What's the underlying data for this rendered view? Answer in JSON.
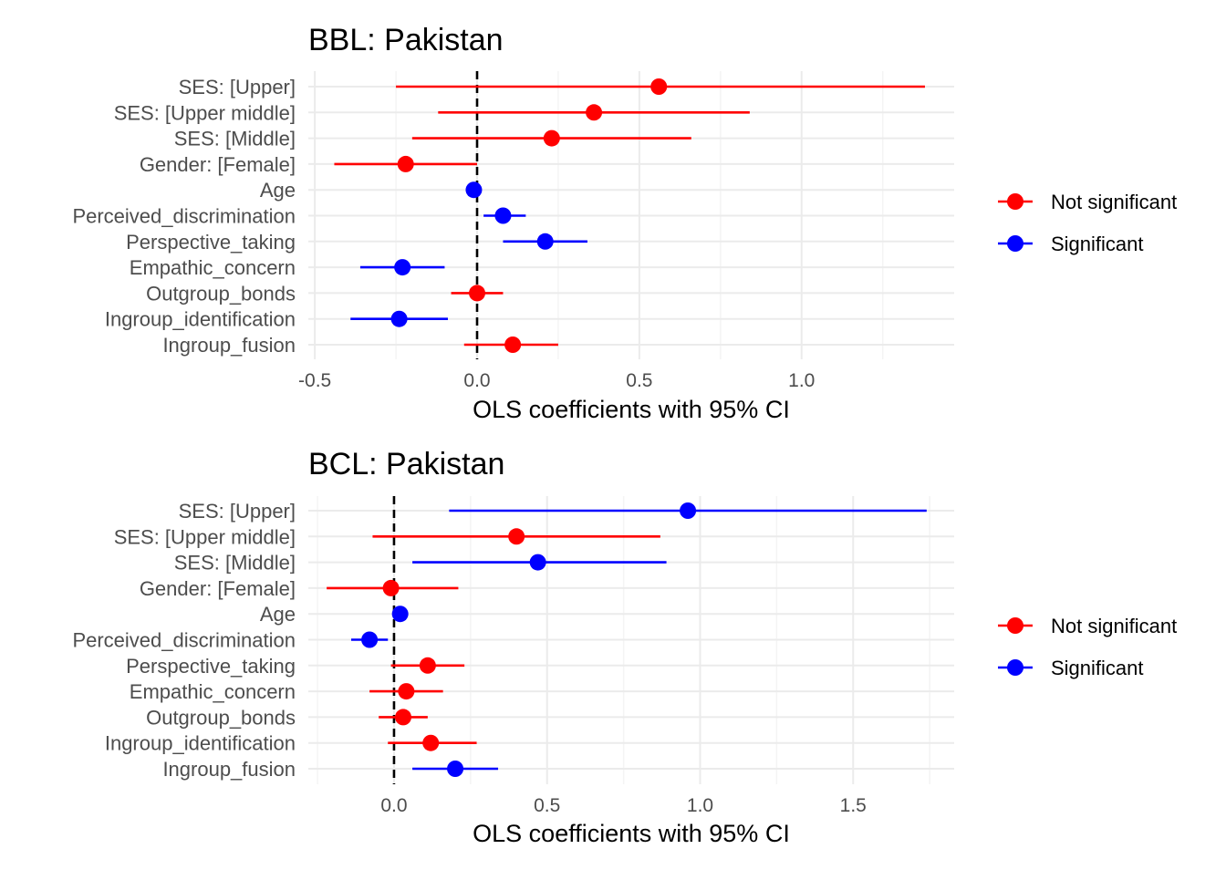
{
  "colors": {
    "not_significant": "#ff0000",
    "significant": "#0000ff"
  },
  "chart_data": [
    {
      "type": "scatter",
      "title": "BBL: Pakistan",
      "xlabel": "OLS coefficients with 95% CI",
      "ylabel": "",
      "xlim": [
        -0.52,
        1.47
      ],
      "xticks": [
        -0.5,
        0.0,
        0.5,
        1.0
      ],
      "xtick_labels": [
        "-0.5",
        "0.0",
        "0.5",
        "1.0"
      ],
      "categories": [
        "SES:  [Upper]",
        "SES:  [Upper middle]",
        "SES:  [Middle]",
        "Gender:  [Female]",
        "Age",
        "Perceived_discrimination",
        "Perspective_taking",
        "Empathic_concern",
        "Outgroup_bonds",
        "Ingroup_identification",
        "Ingroup_fusion"
      ],
      "estimates": [
        0.56,
        0.36,
        0.23,
        -0.22,
        -0.01,
        0.08,
        0.21,
        -0.23,
        0.0,
        -0.24,
        0.11
      ],
      "ci_low": [
        -0.25,
        -0.12,
        -0.2,
        -0.44,
        -0.01,
        0.02,
        0.08,
        -0.36,
        -0.08,
        -0.39,
        -0.04
      ],
      "ci_high": [
        1.38,
        0.84,
        0.66,
        0.0,
        -0.01,
        0.15,
        0.34,
        -0.1,
        0.08,
        -0.09,
        0.25
      ],
      "significant": [
        false,
        false,
        false,
        false,
        true,
        true,
        true,
        true,
        false,
        true,
        false
      ],
      "reference_line": 0,
      "grid": true,
      "legend": {
        "position": "right",
        "entries": [
          "Not significant",
          "Significant"
        ]
      }
    },
    {
      "type": "scatter",
      "title": "BCL: Pakistan",
      "xlabel": "OLS coefficients with 95% CI",
      "ylabel": "",
      "xlim": [
        -0.28,
        1.83
      ],
      "xticks": [
        0.0,
        0.5,
        1.0,
        1.5
      ],
      "xtick_labels": [
        "0.0",
        "0.5",
        "1.0",
        "1.5"
      ],
      "categories": [
        "SES:  [Upper]",
        "SES:  [Upper middle]",
        "SES:  [Middle]",
        "Gender:  [Female]",
        "Age",
        "Perceived_discrimination",
        "Perspective_taking",
        "Empathic_concern",
        "Outgroup_bonds",
        "Ingroup_identification",
        "Ingroup_fusion"
      ],
      "estimates": [
        0.96,
        0.4,
        0.47,
        -0.01,
        0.02,
        -0.08,
        0.11,
        0.04,
        0.03,
        0.12,
        0.2
      ],
      "ci_low": [
        0.18,
        -0.07,
        0.06,
        -0.22,
        0.02,
        -0.14,
        -0.01,
        -0.08,
        -0.05,
        -0.02,
        0.06
      ],
      "ci_high": [
        1.74,
        0.87,
        0.89,
        0.21,
        0.02,
        -0.02,
        0.23,
        0.16,
        0.11,
        0.27,
        0.34
      ],
      "significant": [
        true,
        false,
        true,
        false,
        true,
        true,
        false,
        false,
        false,
        false,
        true
      ],
      "reference_line": 0,
      "grid": true,
      "legend": {
        "position": "right",
        "entries": [
          "Not significant",
          "Significant"
        ]
      }
    }
  ]
}
